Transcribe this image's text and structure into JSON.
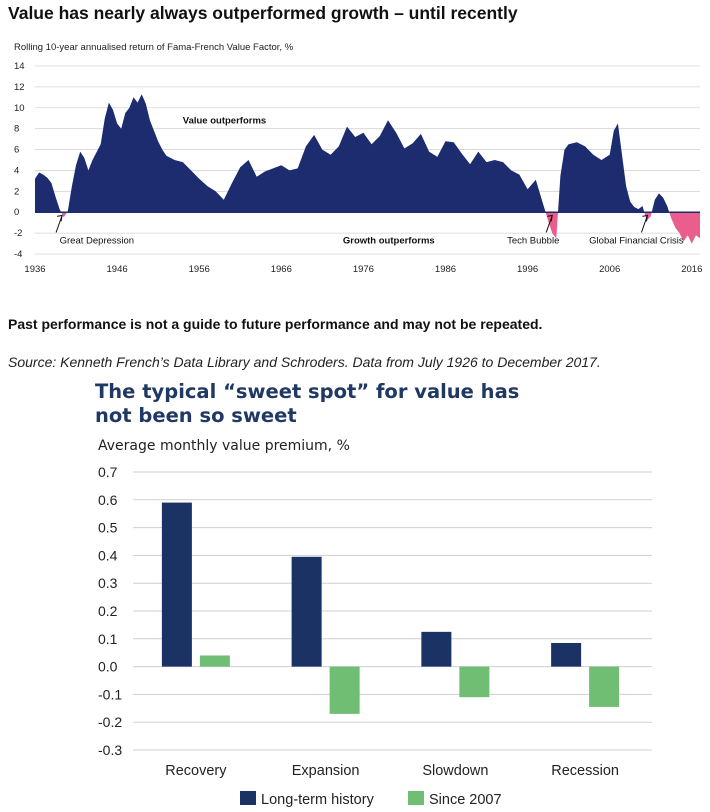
{
  "chart_data": [
    {
      "type": "area",
      "title": "Value has nearly always outperformed growth – until recently",
      "subtitle": "Rolling 10-year annualised return of Fama-French Value Factor, %",
      "xlabel": "",
      "ylabel": "",
      "xlim": [
        1936,
        2017
      ],
      "ylim": [
        -4,
        14
      ],
      "x_ticks": [
        "1936",
        "1946",
        "1956",
        "1966",
        "1976",
        "1986",
        "1996",
        "2006",
        "2016"
      ],
      "y_ticks": [
        "14",
        "12",
        "10",
        "8",
        "6",
        "4",
        "2",
        "0",
        "-2",
        "-4"
      ],
      "grid": true,
      "colors": {
        "positive": "#1c2c6e",
        "negative": "#ea5d8c"
      },
      "series": [
        {
          "x": [
            1936.0,
            1936.5,
            1937.0,
            1937.5,
            1938.0,
            1938.5,
            1939.0,
            1939.5,
            1940.0,
            1940.5,
            1941.0,
            1941.5,
            1942.0,
            1942.5,
            1943.0,
            1944.0,
            1944.5,
            1945.0,
            1945.5,
            1946.0,
            1946.5,
            1947.0,
            1947.5,
            1948.0,
            1948.5,
            1949.0,
            1949.5,
            1950.0,
            1950.5,
            1951.0,
            1951.5,
            1952.0,
            1953.0,
            1954.0,
            1955.0,
            1956.0,
            1957.0,
            1958.0,
            1959.0,
            1960.0,
            1961.0,
            1962.0,
            1963.0,
            1964.0,
            1965.0,
            1966.0,
            1967.0,
            1968.0,
            1969.0,
            1970.0,
            1971.0,
            1972.0,
            1973.0,
            1974.0,
            1975.0,
            1976.0,
            1977.0,
            1978.0,
            1979.0,
            1980.0,
            1981.0,
            1982.0,
            1983.0,
            1984.0,
            1985.0,
            1986.0,
            1987.0,
            1988.0,
            1989.0,
            1990.0,
            1991.0,
            1992.0,
            1993.0,
            1994.0,
            1995.0,
            1996.0,
            1997.0,
            1998.0,
            1998.5,
            1999.0,
            1999.5,
            2000.0,
            2000.5,
            2001.0,
            2002.0,
            2003.0,
            2004.0,
            2005.0,
            2006.0,
            2006.5,
            2007.0,
            2007.5,
            2008.0,
            2008.5,
            2009.0,
            2009.5,
            2010.0,
            2010.5,
            2011.0,
            2011.5,
            2012.0,
            2012.5,
            2013.0,
            2013.5,
            2014.0,
            2014.5,
            2015.0,
            2015.5,
            2016.0,
            2016.5,
            2017.0
          ],
          "y": [
            3.2,
            3.8,
            3.6,
            3.3,
            2.8,
            1.5,
            0.3,
            -0.5,
            0.1,
            2.5,
            4.5,
            5.8,
            5.2,
            4.0,
            5.0,
            6.5,
            9.0,
            10.5,
            9.8,
            8.5,
            8.0,
            9.5,
            10.0,
            11.0,
            10.5,
            11.3,
            10.4,
            8.8,
            7.8,
            6.8,
            6.0,
            5.4,
            5.0,
            4.8,
            4.0,
            3.2,
            2.5,
            2.0,
            1.2,
            2.8,
            4.3,
            5.0,
            3.4,
            3.9,
            4.2,
            4.5,
            4.0,
            4.2,
            6.3,
            7.4,
            6.0,
            5.5,
            6.3,
            8.2,
            7.2,
            7.6,
            6.5,
            7.3,
            8.8,
            7.6,
            6.1,
            6.6,
            7.5,
            5.8,
            5.3,
            6.8,
            6.7,
            5.6,
            4.6,
            5.8,
            4.8,
            5.0,
            4.8,
            4.0,
            3.6,
            2.2,
            3.1,
            0.5,
            -0.8,
            -2.0,
            -2.5,
            3.5,
            6.0,
            6.5,
            6.7,
            6.3,
            5.5,
            5.0,
            5.5,
            7.8,
            8.5,
            5.5,
            2.5,
            1.0,
            0.5,
            0.3,
            0.6,
            -0.8,
            -0.4,
            1.2,
            1.8,
            1.4,
            0.6,
            -0.6,
            -1.5,
            -2.0,
            -2.8,
            -2.2,
            -3.0,
            -2.2,
            -2.5
          ]
        }
      ],
      "annotations": [
        {
          "text": "Value outperforms",
          "x": 1954,
          "y": 8.8
        },
        {
          "text": "Growth outperforms",
          "x": 1973.5,
          "y": -2.7
        },
        {
          "text": "Great Depression",
          "x": 1939,
          "y": -2.7,
          "arrow_to": [
            1939.3,
            -0.3
          ]
        },
        {
          "text": "Tech Bubble",
          "x": 1993.5,
          "y": -2.7,
          "arrow_to": [
            1999.0,
            -0.3
          ]
        },
        {
          "text": "Global Financial Crisis",
          "x": 2003.5,
          "y": -2.7,
          "arrow_to": [
            2010.6,
            -0.3
          ]
        }
      ]
    },
    {
      "type": "bar",
      "title": "The typical “sweet spot” for value has not been so sweet",
      "ylabel": "Average monthly value premium, %",
      "xlabel": "",
      "ylim": [
        -0.3,
        0.7
      ],
      "y_ticks": [
        "0.7",
        "0.6",
        "0.5",
        "0.4",
        "0.3",
        "0.2",
        "0.1",
        "0.0",
        "-0.1",
        "-0.2",
        "-0.3"
      ],
      "grid": true,
      "legend": "bottom",
      "categories": [
        "Recovery",
        "Expansion",
        "Slowdown",
        "Recession"
      ],
      "series": [
        {
          "name": "Long-term history",
          "color": "#1b3264",
          "values": [
            0.59,
            0.395,
            0.125,
            0.085
          ]
        },
        {
          "name": "Since 2007",
          "color": "#6fbe73",
          "values": [
            0.04,
            -0.17,
            -0.11,
            -0.145
          ]
        }
      ]
    }
  ],
  "page": {
    "note": "Past performance is not a guide to future performance and may not be repeated.",
    "source": "Source: Kenneth French’s Data Library and Schroders. Data from July 1926 to December 2017."
  }
}
